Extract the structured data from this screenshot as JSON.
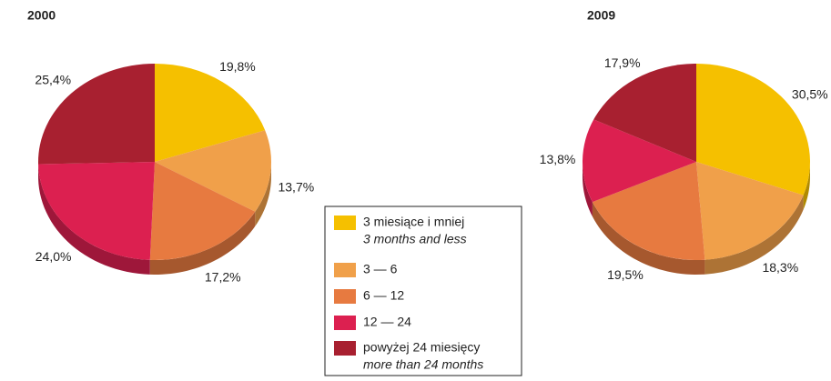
{
  "chart_data": [
    {
      "type": "pie",
      "title": "2000",
      "values": [
        19.8,
        13.7,
        17.2,
        24.0,
        25.4
      ],
      "value_labels": [
        "19,8%",
        "13,7%",
        "17,2%",
        "24,0%",
        "25,4%"
      ]
    },
    {
      "type": "pie",
      "title": "2009",
      "values": [
        30.5,
        18.3,
        19.5,
        13.8,
        17.9
      ],
      "value_labels": [
        "30,5%",
        "18,3%",
        "19,5%",
        "13,8%",
        "17,9%"
      ]
    }
  ],
  "legend": {
    "entries": [
      {
        "label": "3 miesiące i mniej",
        "sublabel": "3 months and less",
        "color": "#f5c000"
      },
      {
        "label": "3 — 6",
        "sublabel": null,
        "color": "#f0a04a"
      },
      {
        "label": "6 — 12",
        "sublabel": null,
        "color": "#e77a40"
      },
      {
        "label": "12 — 24",
        "sublabel": null,
        "color": "#dc2050"
      },
      {
        "label": "powyżej 24 miesięcy",
        "sublabel": "more than 24 months",
        "color": "#a82030"
      }
    ]
  }
}
